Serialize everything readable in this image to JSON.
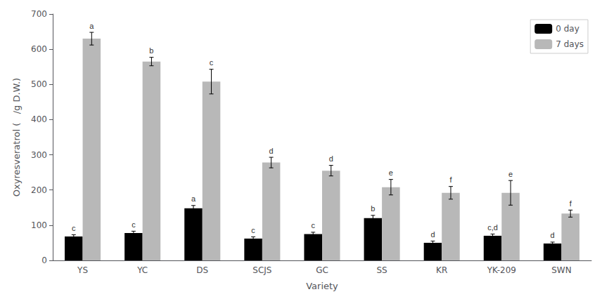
{
  "chart_data": {
    "type": "bar",
    "xlabel": "Variety",
    "ylabel": "Oxyresveratrol (   /g D.W.)",
    "categories": [
      "YS",
      "YC",
      "DS",
      "SCJS",
      "GC",
      "SS",
      "KR",
      "YK-209",
      "SWN"
    ],
    "series": [
      {
        "name": "0 day",
        "color": "#000000",
        "values": [
          68,
          78,
          148,
          62,
          75,
          120,
          50,
          70,
          48
        ],
        "errors": [
          5,
          5,
          8,
          5,
          5,
          8,
          5,
          5,
          4
        ],
        "annotations": [
          "c",
          "c",
          "a",
          "c",
          "c",
          "b",
          "d",
          "c,d",
          "d"
        ]
      },
      {
        "name": "7 days",
        "color": "#b8b8b8",
        "values": [
          630,
          565,
          508,
          278,
          255,
          208,
          192,
          192,
          133
        ],
        "errors": [
          18,
          12,
          35,
          15,
          15,
          22,
          18,
          35,
          10
        ],
        "annotations": [
          "a",
          "b",
          "c",
          "d",
          "d",
          "e",
          "f",
          "e",
          "f"
        ]
      }
    ],
    "ylim": [
      0,
      700
    ],
    "yticks": [
      0,
      100,
      200,
      300,
      400,
      500,
      600,
      700
    ],
    "grid": false,
    "legend": "upper right"
  }
}
